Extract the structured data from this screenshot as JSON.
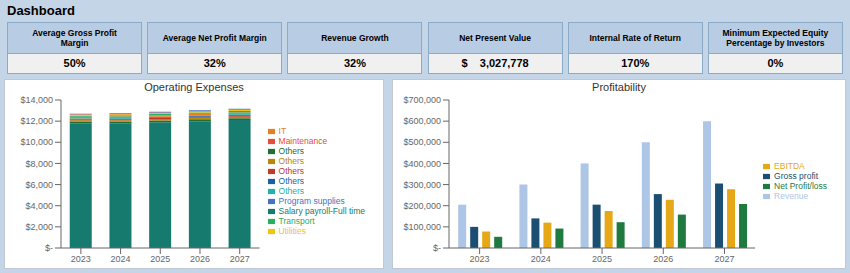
{
  "title": "Dashboard",
  "annotations": [
    {
      "label": "Average Gross Profit\nMargin",
      "value": "50%"
    },
    {
      "label": "Average Net Profit Margin",
      "value": "32%"
    },
    {
      "label": "Revenue Growth",
      "value": "32%"
    },
    {
      "label": "Net Present Value",
      "value": "$    3,027,778"
    },
    {
      "label": "Internal Rate of Return",
      "value": "170%"
    },
    {
      "label": "Minimum Expected Equity\nPercentage by Investors",
      "value": "0%"
    }
  ],
  "chart_data": [
    {
      "type": "bar",
      "title": "Operating Expenses",
      "stacked": true,
      "grid": false,
      "legend": "right",
      "categories": [
        "2023",
        "2024",
        "2025",
        "2026",
        "2027"
      ],
      "series": [
        {
          "name": "Salary payroll-Full time",
          "color": "#167a6e",
          "values": [
            11800,
            11800,
            11900,
            12000,
            12100
          ]
        },
        {
          "name": "Others",
          "color": "#1e6e36",
          "values": [
            160,
            165,
            170,
            175,
            180
          ]
        },
        {
          "name": "Others",
          "color": "#b8860b",
          "values": [
            120,
            125,
            130,
            135,
            140
          ]
        },
        {
          "name": "Others",
          "color": "#c0392b",
          "values": [
            80,
            85,
            90,
            95,
            100
          ]
        },
        {
          "name": "Others",
          "color": "#1a5ea8",
          "values": [
            60,
            65,
            70,
            75,
            80
          ]
        },
        {
          "name": "Others",
          "color": "#20b2aa",
          "values": [
            55,
            58,
            62,
            66,
            70
          ]
        },
        {
          "name": "IT",
          "color": "#e67e22",
          "values": [
            130,
            135,
            140,
            145,
            150
          ]
        },
        {
          "name": "Transport",
          "color": "#27ae60",
          "values": [
            110,
            115,
            120,
            125,
            130
          ]
        },
        {
          "name": "Utilities",
          "color": "#f1c40f",
          "values": [
            90,
            95,
            100,
            105,
            110
          ]
        },
        {
          "name": "Maintenance",
          "color": "#e74c3c",
          "values": [
            40,
            42,
            44,
            46,
            48
          ]
        },
        {
          "name": "Program supplies",
          "color": "#4472c4",
          "values": [
            55,
            60,
            65,
            70,
            75
          ]
        }
      ],
      "ylim": [
        0,
        14000
      ],
      "yticks": [
        {
          "value": 0,
          "label": "$-"
        },
        {
          "value": 2000,
          "label": "$2,000"
        },
        {
          "value": 4000,
          "label": "$4,000"
        },
        {
          "value": 6000,
          "label": "$6,000"
        },
        {
          "value": 8000,
          "label": "$8,000"
        },
        {
          "value": 10000,
          "label": "$10,000"
        },
        {
          "value": 12000,
          "label": "$12,000"
        },
        {
          "value": 14000,
          "label": "$14,000"
        }
      ]
    },
    {
      "type": "bar",
      "title": "Profitability",
      "stacked": false,
      "grid": false,
      "legend": "right",
      "categories": [
        "2023",
        "2024",
        "2025",
        "2026",
        "2027"
      ],
      "series": [
        {
          "name": "Revenue",
          "color": "#adc6e5",
          "values": [
            205000,
            300000,
            400000,
            500000,
            600000
          ]
        },
        {
          "name": "Gross profit",
          "color": "#1a4f72",
          "values": [
            100000,
            140000,
            205000,
            255000,
            305000
          ]
        },
        {
          "name": "EBITDA",
          "color": "#e6a817",
          "values": [
            78000,
            120000,
            175000,
            228000,
            278000
          ]
        },
        {
          "name": "Net Profit/loss",
          "color": "#1e7a3e",
          "values": [
            53000,
            92000,
            122000,
            158000,
            208000
          ]
        }
      ],
      "ylim": [
        0,
        700000
      ],
      "yticks": [
        {
          "value": 0,
          "label": "$-"
        },
        {
          "value": 100000,
          "label": "$100,000"
        },
        {
          "value": 200000,
          "label": "$200,000"
        },
        {
          "value": 300000,
          "label": "$300,000"
        },
        {
          "value": 400000,
          "label": "$400,000"
        },
        {
          "value": 500000,
          "label": "$500,000"
        },
        {
          "value": 600000,
          "label": "$600,000"
        },
        {
          "value": 700000,
          "label": "$700,000"
        }
      ]
    }
  ]
}
